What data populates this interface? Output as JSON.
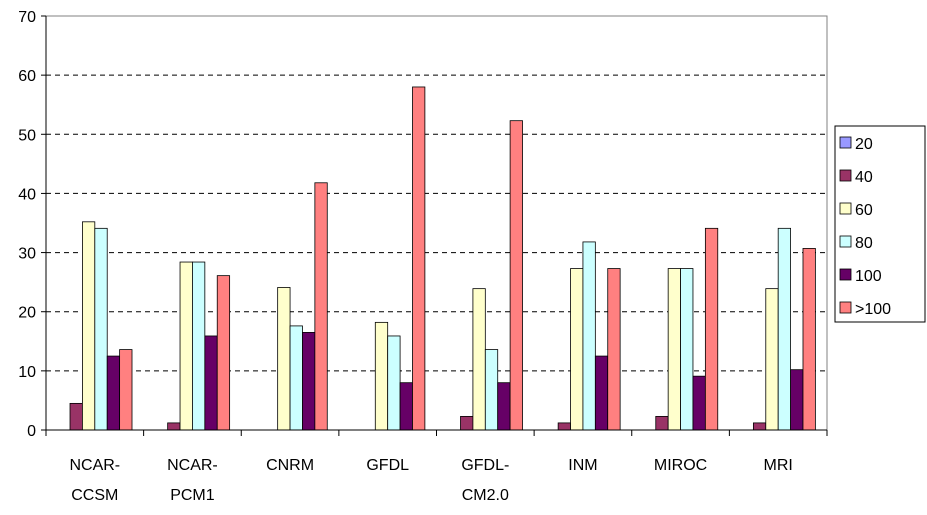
{
  "chart_data": {
    "type": "bar",
    "title": "",
    "xlabel": "",
    "ylabel": "",
    "ylim": [
      0,
      70
    ],
    "yticks": [
      "0",
      "10",
      "20",
      "30",
      "40",
      "50",
      "60",
      "70"
    ],
    "grid": "horizontal dashed",
    "legend_position": "right",
    "categories": [
      [
        "NCAR-",
        "CCSM"
      ],
      [
        "NCAR-",
        "PCM1"
      ],
      [
        "CNRM"
      ],
      [
        "GFDL"
      ],
      [
        "GFDL-",
        "CM2.0"
      ],
      [
        "INM"
      ],
      [
        "MIROC"
      ],
      [
        "MRI"
      ]
    ],
    "series": [
      {
        "name": "20",
        "color": "#9999ff",
        "values": [
          0,
          0,
          0,
          0,
          0,
          0,
          0,
          0
        ]
      },
      {
        "name": "40",
        "color": "#993366",
        "values": [
          4.5,
          1.2,
          0,
          0,
          2.3,
          1.2,
          2.3,
          1.2
        ]
      },
      {
        "name": "60",
        "color": "#ffffcc",
        "values": [
          35.2,
          28.4,
          24.1,
          18.2,
          23.9,
          27.3,
          27.3,
          23.9
        ]
      },
      {
        "name": "80",
        "color": "#ccffff",
        "values": [
          34.1,
          28.4,
          17.6,
          15.9,
          13.6,
          31.8,
          27.3,
          34.1
        ]
      },
      {
        "name": "100",
        "color": "#660066",
        "values": [
          12.5,
          15.9,
          16.5,
          8.0,
          8.0,
          12.5,
          9.1,
          10.2
        ]
      },
      {
        "name": ">100",
        "color": "#ff8080",
        "values": [
          13.6,
          26.1,
          41.8,
          58.0,
          52.3,
          27.3,
          34.1,
          30.7
        ]
      }
    ]
  }
}
